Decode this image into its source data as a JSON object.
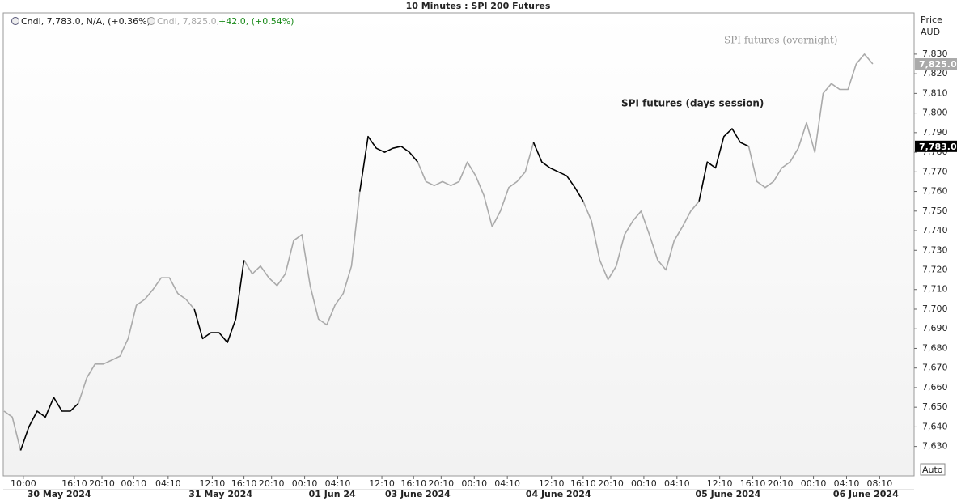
{
  "chart_data": {
    "type": "line",
    "title": "10 Minutes : SPI 200 Futures",
    "legend_items": [
      {
        "text": "Cndl, 7,783.0, N/A, (+0.36%),"
      },
      {
        "text": "Cndl, 7,825.0,",
        "change": "+42.0, (+0.54%)"
      }
    ],
    "annotations": [
      "SPI futures (days session)",
      "SPI futures (overnight)"
    ],
    "y_axis_label": "Price",
    "y_axis_unit": "AUD",
    "scale_button": "Auto",
    "last_labels": [
      {
        "value": 7825,
        "label": "7,825.0",
        "color": "#aaaaaa"
      },
      {
        "value": 7783,
        "label": "7,783.0",
        "color": "#000000"
      }
    ],
    "x": [
      0,
      6,
      12,
      18,
      24,
      30,
      36,
      42,
      48,
      54,
      60,
      66,
      72,
      78,
      84,
      90,
      96,
      102,
      108,
      114,
      120,
      126,
      132,
      138,
      144,
      150,
      156,
      162,
      168,
      174,
      180,
      186,
      192,
      198,
      204,
      210,
      216,
      222,
      228,
      234,
      240,
      246,
      252,
      258,
      264,
      270,
      276,
      282,
      288,
      294,
      300,
      306,
      312,
      318,
      324,
      330,
      336,
      342,
      348,
      354,
      360,
      366,
      372,
      378,
      384,
      390,
      396,
      402,
      408,
      414,
      420,
      426,
      432,
      438,
      444,
      450,
      456,
      462,
      468,
      474,
      480,
      486,
      492,
      498,
      504,
      510,
      516,
      522,
      528,
      534,
      540,
      546,
      552,
      558,
      564,
      570,
      576,
      582,
      588,
      594,
      600,
      606,
      612,
      618,
      624,
      630
    ],
    "series": [
      {
        "color": "#000000",
        "values": [
          null,
          null,
          7628,
          7640,
          7648,
          7645,
          7655,
          7648,
          7648,
          7652,
          null,
          null,
          null,
          null,
          null,
          null,
          null,
          null,
          null,
          null,
          null,
          null,
          null,
          7700,
          7685,
          7688,
          7688,
          7683,
          7695,
          7725,
          null,
          null,
          null,
          null,
          null,
          null,
          null,
          null,
          null,
          null,
          null,
          null,
          null,
          7760,
          7788,
          7782,
          7780,
          7782,
          7783,
          7780,
          7775,
          null,
          null,
          null,
          null,
          null,
          null,
          null,
          null,
          null,
          null,
          null,
          null,
          null,
          7785,
          7775,
          7772,
          7770,
          7768,
          7762,
          7755,
          null,
          null,
          null,
          null,
          null,
          null,
          null,
          null,
          null,
          null,
          null,
          null,
          null,
          7755,
          7775,
          7772,
          7788,
          7792,
          7785,
          7783,
          null,
          null,
          null,
          null,
          null,
          null,
          null,
          null,
          null,
          null,
          null,
          null,
          null,
          null,
          null
        ]
      },
      {
        "color": "#aaaaaa",
        "values": [
          7648,
          7645,
          7628,
          null,
          null,
          null,
          null,
          null,
          null,
          7652,
          7665,
          7672,
          7672,
          7674,
          7676,
          7685,
          7702,
          7705,
          7710,
          7716,
          7716,
          7708,
          7705,
          7700,
          null,
          null,
          null,
          null,
          null,
          7725,
          7718,
          7722,
          7716,
          7712,
          7718,
          7735,
          7738,
          7712,
          7695,
          7692,
          7702,
          7708,
          7722,
          7760,
          null,
          null,
          null,
          null,
          null,
          null,
          7775,
          7765,
          7763,
          7765,
          7763,
          7765,
          7775,
          7768,
          7758,
          7742,
          7750,
          7762,
          7765,
          7770,
          7785,
          null,
          null,
          null,
          null,
          null,
          7755,
          7745,
          7725,
          7715,
          7722,
          7738,
          7745,
          7750,
          7738,
          7725,
          7720,
          7735,
          7742,
          7750,
          7755,
          null,
          null,
          null,
          null,
          null,
          7783,
          7765,
          7762,
          7765,
          7772,
          7775,
          7782,
          7795,
          7780,
          7810,
          7815,
          7812,
          7812,
          7825,
          7830,
          7825
        ]
      }
    ],
    "xlim": [
      0,
      660
    ],
    "xticks": [
      {
        "value": 14,
        "label": "10:00"
      },
      {
        "value": 51,
        "label": "16:10"
      },
      {
        "value": 71,
        "label": "20:10"
      },
      {
        "value": 94,
        "label": "00:10"
      },
      {
        "value": 119,
        "label": "04:10"
      },
      {
        "value": 151,
        "label": "12:10"
      },
      {
        "value": 174,
        "label": "16:10"
      },
      {
        "value": 194,
        "label": "20:10"
      },
      {
        "value": 218,
        "label": "00:10"
      },
      {
        "value": 242,
        "label": "04:10"
      },
      {
        "value": 274,
        "label": "12:10"
      },
      {
        "value": 297,
        "label": "16:10"
      },
      {
        "value": 317,
        "label": "20:10"
      },
      {
        "value": 341,
        "label": "00:10"
      },
      {
        "value": 365,
        "label": "04:10"
      },
      {
        "value": 397,
        "label": "12:10"
      },
      {
        "value": 420,
        "label": "16:10"
      },
      {
        "value": 440,
        "label": "20:10"
      },
      {
        "value": 464,
        "label": "00:10"
      },
      {
        "value": 488,
        "label": "04:10"
      },
      {
        "value": 519,
        "label": "12:10"
      },
      {
        "value": 543,
        "label": "16:10"
      },
      {
        "value": 563,
        "label": "20:10"
      },
      {
        "value": 587,
        "label": "00:10"
      },
      {
        "value": 611,
        "label": "04:10"
      },
      {
        "value": 635,
        "label": "08:10"
      }
    ],
    "date_labels": [
      {
        "value": 40,
        "label": "30 May 2024"
      },
      {
        "value": 157,
        "label": "31 May 2024"
      },
      {
        "value": 238,
        "label": "01 Jun 24"
      },
      {
        "value": 300,
        "label": "03 June 2024"
      },
      {
        "value": 402,
        "label": "04 June 2024"
      },
      {
        "value": 525,
        "label": "05 June 2024"
      },
      {
        "value": 625,
        "label": "06 June 2024"
      }
    ],
    "ylim": [
      7615,
      7851
    ],
    "yticks": [
      {
        "value": 7630,
        "label": "7,630"
      },
      {
        "value": 7640,
        "label": "7,640"
      },
      {
        "value": 7650,
        "label": "7,650"
      },
      {
        "value": 7660,
        "label": "7,660"
      },
      {
        "value": 7670,
        "label": "7,670"
      },
      {
        "value": 7680,
        "label": "7,680"
      },
      {
        "value": 7690,
        "label": "7,690"
      },
      {
        "value": 7700,
        "label": "7,700"
      },
      {
        "value": 7710,
        "label": "7,710"
      },
      {
        "value": 7720,
        "label": "7,720"
      },
      {
        "value": 7730,
        "label": "7,730"
      },
      {
        "value": 7740,
        "label": "7,740"
      },
      {
        "value": 7750,
        "label": "7,750"
      },
      {
        "value": 7760,
        "label": "7,760"
      },
      {
        "value": 7770,
        "label": "7,770"
      },
      {
        "value": 7780,
        "label": "7,780"
      },
      {
        "value": 7790,
        "label": "7,790"
      },
      {
        "value": 7800,
        "label": "7,800"
      },
      {
        "value": 7810,
        "label": "7,810"
      },
      {
        "value": 7820,
        "label": "7,820"
      },
      {
        "value": 7830,
        "label": "7,830"
      }
    ],
    "grid": false
  }
}
